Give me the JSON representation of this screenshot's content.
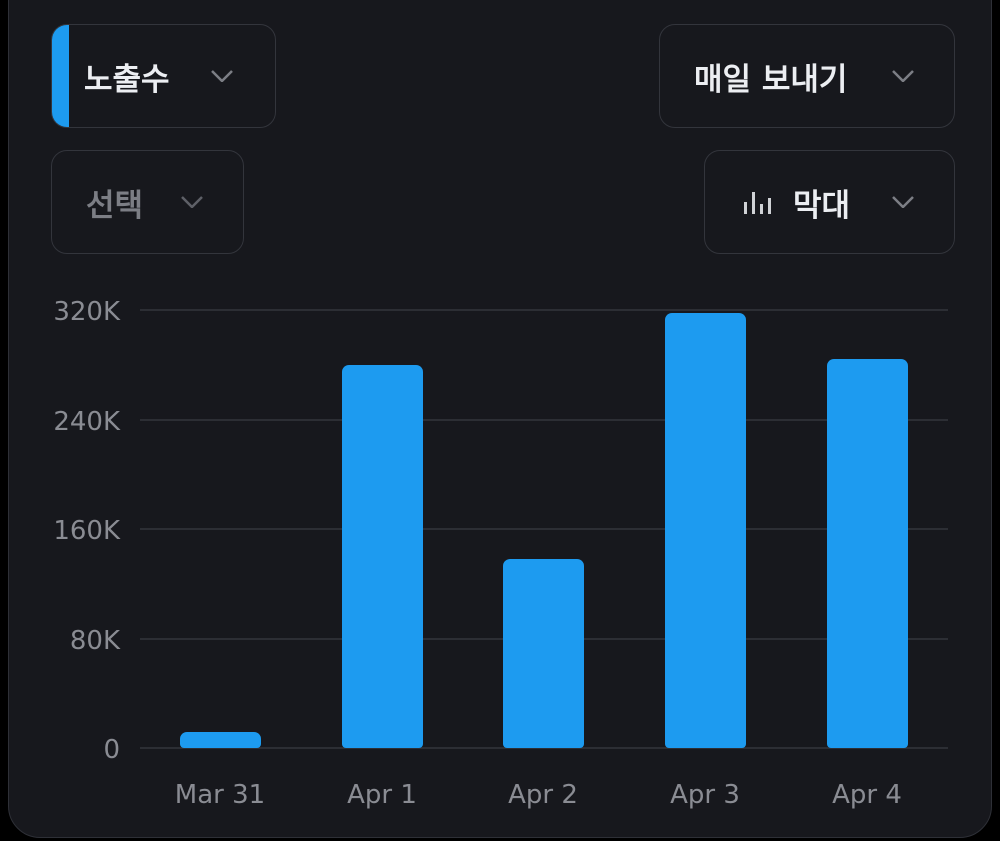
{
  "controls": {
    "metric": {
      "label": "노출수",
      "accent_color": "#1d9bf0"
    },
    "frequency": {
      "label": "매일 보내기"
    },
    "filter": {
      "label": "선택"
    },
    "chart_type": {
      "label": "막대",
      "icon": "bar-chart-icon"
    }
  },
  "chart_data": {
    "type": "bar",
    "title": "",
    "xlabel": "",
    "ylabel": "노출수",
    "categories": [
      "Mar 31",
      "Apr 1",
      "Apr 2",
      "Apr 3",
      "Apr 4"
    ],
    "values": [
      12000,
      280000,
      138000,
      318000,
      284000
    ],
    "ylim": [
      0,
      320000
    ],
    "yticks": [
      0,
      80000,
      160000,
      240000,
      320000
    ],
    "ytick_labels": [
      "0",
      "80K",
      "160K",
      "240K",
      "320K"
    ],
    "grid": true,
    "legend": "none",
    "bar_color": "#1d9bf0"
  }
}
